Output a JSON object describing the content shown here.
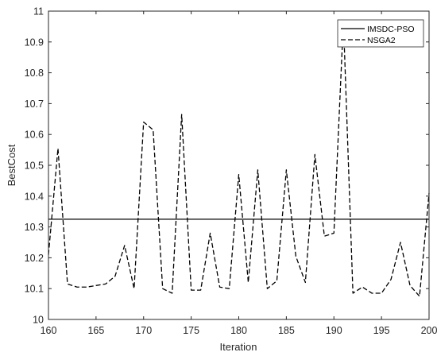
{
  "chart_data": {
    "type": "line",
    "title": "",
    "xlabel": "Iteration",
    "ylabel": "BestCost",
    "xlim": [
      160,
      200
    ],
    "ylim": [
      10,
      11
    ],
    "xticks": [
      "160",
      "165",
      "170",
      "175",
      "180",
      "185",
      "190",
      "195",
      "200"
    ],
    "yticks": [
      "10",
      "10.1",
      "10.2",
      "10.3",
      "10.4",
      "10.5",
      "10.6",
      "10.7",
      "10.8",
      "10.9",
      "11"
    ],
    "grid": false,
    "legend_position": "top-right",
    "series": [
      {
        "name": "IMSDC-PSO",
        "style": "solid",
        "color": "#000000",
        "x": [
          160,
          200
        ],
        "y": [
          10.325,
          10.325
        ]
      },
      {
        "name": "NSGA2",
        "style": "dashed",
        "color": "#000000",
        "x": [
          160,
          161,
          162,
          163,
          164,
          165,
          166,
          167,
          168,
          169,
          170,
          171,
          172,
          173,
          174,
          175,
          176,
          177,
          178,
          179,
          180,
          181,
          182,
          183,
          184,
          185,
          186,
          187,
          188,
          189,
          190,
          191,
          192,
          193,
          194,
          195,
          196,
          197,
          198,
          199,
          200
        ],
        "y": [
          10.21,
          10.555,
          10.115,
          10.105,
          10.105,
          10.11,
          10.115,
          10.14,
          10.24,
          10.1,
          10.64,
          10.615,
          10.1,
          10.085,
          10.665,
          10.095,
          10.095,
          10.28,
          10.105,
          10.1,
          10.47,
          10.12,
          10.485,
          10.1,
          10.125,
          10.485,
          10.205,
          10.12,
          10.535,
          10.27,
          10.28,
          10.97,
          10.085,
          10.105,
          10.085,
          10.085,
          10.13,
          10.25,
          10.11,
          10.075,
          10.41
        ]
      }
    ]
  }
}
